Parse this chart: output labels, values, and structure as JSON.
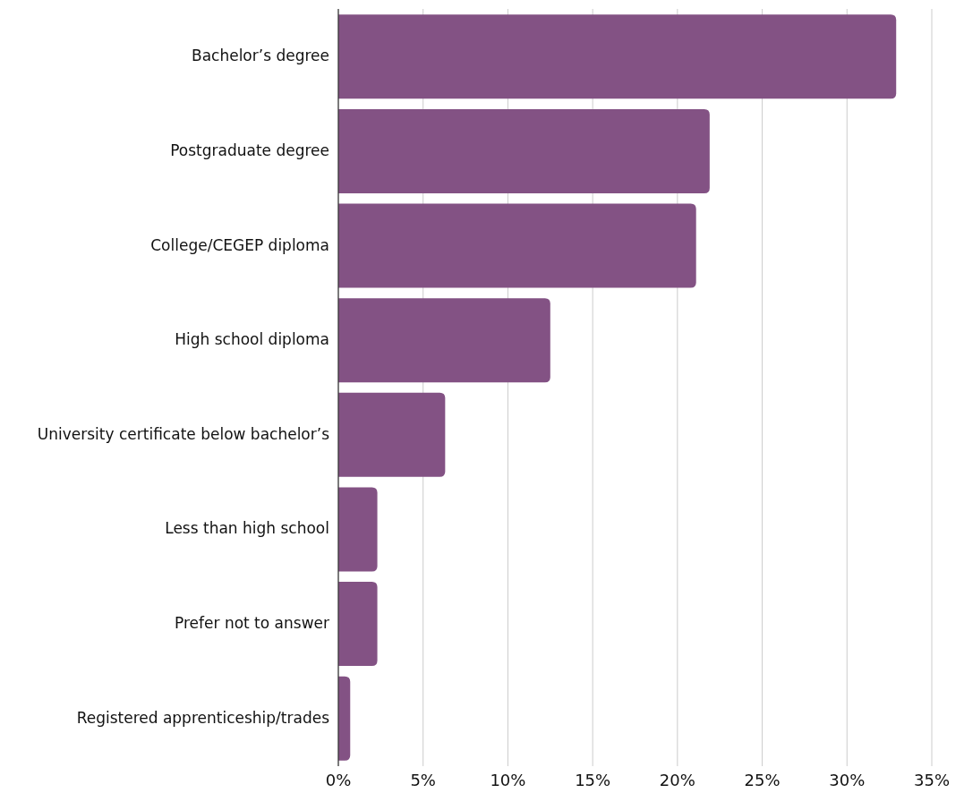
{
  "chart_data": {
    "type": "bar",
    "orientation": "horizontal",
    "categories": [
      "Bachelor’s degree",
      "Postgraduate degree",
      "College/CEGEP diploma",
      "High school diploma",
      "University certificate below bachelor’s",
      "Less than high school",
      "Prefer not to answer",
      "Registered apprenticeship/trades"
    ],
    "values": [
      32.9,
      21.9,
      21.1,
      12.5,
      6.3,
      2.3,
      2.3,
      0.7
    ],
    "color": "#835284",
    "xlim": [
      0,
      35
    ],
    "xticks": [
      {
        "value": 0,
        "label": "0%"
      },
      {
        "value": 5,
        "label": "5%"
      },
      {
        "value": 10,
        "label": "10%"
      },
      {
        "value": 15,
        "label": "15%"
      },
      {
        "value": 20,
        "label": "20%"
      },
      {
        "value": 25,
        "label": "25%"
      },
      {
        "value": 30,
        "label": "30%"
      },
      {
        "value": 35,
        "label": "35%"
      }
    ],
    "grid": "x"
  }
}
